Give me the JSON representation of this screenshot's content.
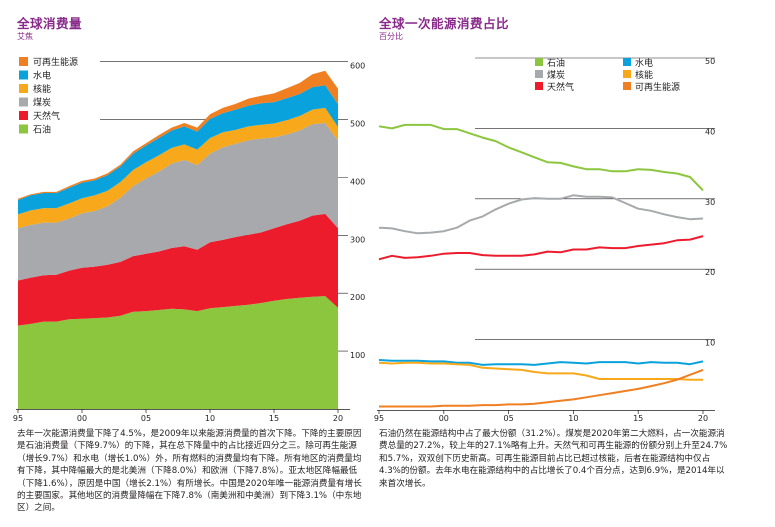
{
  "left_panel": {
    "title": "全球消费量",
    "unit": "艾焦",
    "caption": "去年一次能源消费量下降了4.5%，是2009年以来能源消费量的首次下降。下降的主要原因是石油消费量（下降9.7%）的下降，其在总下降量中的占比接近四分之三。除可再生能源（增长9.7%）和水电（增长1.0%）外，所有燃料的消费量均有下降。所有地区的消费量均有下降，其中降幅最大的是北美洲（下降8.0%）和欧洲（下降7.8%）。亚太地区降幅最低（下降1.6%），原因是中国（增长2.1%）有所增长。中国是2020年唯一能源消费量有增长的主要国家。其他地区的消费量降幅在下降7.8%（南美洲和中美洲）到下降3.1%（中东地区）之间。"
  },
  "right_panel": {
    "title": "全球一次能源消费占比",
    "unit": "百分比",
    "caption": "石油仍然在能源结构中占了最大份额（31.2%）。煤炭是2020年第二大燃料，占一次能源消费总量的27.2%，较上年的27.1%略有上升。天然气和可再生能源的份额分别上升至24.7%和5.7%，双双创下历史新高。可再生能源目前占比已超过核能，后者在能源结构中仅占4.3%的份额。去年水电在能源结构中的占比增长了0.4个百分点，达到6.9%，是2014年以来首次增长。"
  },
  "colors": {
    "oil": "#8cc63f",
    "gas": "#ec1c2d",
    "coal": "#a7a9ac",
    "nuclear": "#f7a81b",
    "hydro": "#0aa2dc",
    "renewables": "#f07f22"
  },
  "chart_data": [
    {
      "type": "area",
      "stacked": true,
      "x": [
        1995,
        1996,
        1997,
        1998,
        1999,
        2000,
        2001,
        2002,
        2003,
        2004,
        2005,
        2006,
        2007,
        2008,
        2009,
        2010,
        2011,
        2012,
        2013,
        2014,
        2015,
        2016,
        2017,
        2018,
        2019,
        2020
      ],
      "x_tick_labels": [
        "95",
        "00",
        "05",
        "10",
        "15",
        "20"
      ],
      "x_ticks": [
        1995,
        2000,
        2005,
        2010,
        2015,
        2020
      ],
      "y_ticks": [
        100,
        200,
        300,
        400,
        500,
        600
      ],
      "ylim": [
        0,
        620
      ],
      "y_axis_side": "right",
      "legend_position": "top-left",
      "legend_order": [
        "renewables",
        "hydro",
        "nuclear",
        "coal",
        "gas",
        "oil"
      ],
      "series": [
        {
          "key": "oil",
          "name": "石油",
          "values": [
            144,
            147,
            151,
            151,
            155,
            156,
            157,
            158,
            161,
            168,
            169,
            171,
            173,
            172,
            169,
            174,
            176,
            178,
            180,
            183,
            187,
            190,
            192,
            194,
            195,
            175
          ]
        },
        {
          "key": "gas",
          "name": "天然气",
          "values": [
            78,
            80,
            80,
            81,
            84,
            88,
            89,
            91,
            93,
            96,
            99,
            101,
            105,
            109,
            106,
            114,
            116,
            119,
            121,
            122,
            125,
            129,
            133,
            140,
            142,
            137
          ]
        },
        {
          "key": "coal",
          "name": "煤炭",
          "values": [
            90,
            91,
            91,
            90,
            90,
            94,
            96,
            101,
            111,
            121,
            130,
            138,
            146,
            149,
            146,
            153,
            160,
            161,
            163,
            162,
            157,
            155,
            156,
            158,
            157,
            151
          ]
        },
        {
          "key": "nuclear",
          "name": "核能",
          "values": [
            24,
            25,
            25,
            25,
            26,
            26,
            27,
            27,
            27,
            28,
            28,
            28,
            27,
            27,
            27,
            27,
            26,
            24,
            24,
            24,
            24,
            25,
            25,
            25,
            26,
            24
          ]
        },
        {
          "key": "hydro",
          "name": "水电",
          "values": [
            25,
            26,
            26,
            26,
            27,
            27,
            26,
            27,
            27,
            28,
            29,
            30,
            30,
            31,
            31,
            33,
            33,
            35,
            36,
            37,
            37,
            38,
            38,
            39,
            39,
            39
          ]
        },
        {
          "key": "renewables",
          "name": "可再生能源",
          "values": [
            2,
            2,
            2,
            2,
            3,
            3,
            3,
            3,
            3,
            4,
            4,
            5,
            5,
            6,
            7,
            8,
            9,
            10,
            12,
            13,
            15,
            17,
            19,
            22,
            25,
            27
          ]
        }
      ]
    },
    {
      "type": "line",
      "x": [
        1995,
        1996,
        1997,
        1998,
        1999,
        2000,
        2001,
        2002,
        2003,
        2004,
        2005,
        2006,
        2007,
        2008,
        2009,
        2010,
        2011,
        2012,
        2013,
        2014,
        2015,
        2016,
        2017,
        2018,
        2019,
        2020
      ],
      "x_tick_labels": [
        "95",
        "00",
        "05",
        "10",
        "15",
        "20"
      ],
      "x_ticks": [
        1995,
        2000,
        2005,
        2010,
        2015,
        2020
      ],
      "y_ticks": [
        10,
        20,
        30,
        40,
        50
      ],
      "ylim": [
        0,
        50
      ],
      "y_axis_side": "right",
      "legend_position": "top",
      "legend_layout": [
        [
          "oil",
          "hydro"
        ],
        [
          "coal",
          "nuclear"
        ],
        [
          "gas",
          "renewables"
        ]
      ],
      "series": [
        {
          "key": "oil",
          "name": "石油",
          "values": [
            40.3,
            40.0,
            40.5,
            40.5,
            40.5,
            39.9,
            39.9,
            39.3,
            38.7,
            38.2,
            37.3,
            36.6,
            35.9,
            35.2,
            35.1,
            34.6,
            34.2,
            34.2,
            33.9,
            33.9,
            34.2,
            34.1,
            33.8,
            33.6,
            33.1,
            31.2
          ]
        },
        {
          "key": "coal",
          "name": "煤炭",
          "values": [
            25.9,
            25.8,
            25.4,
            25.1,
            25.2,
            25.4,
            25.9,
            26.9,
            27.5,
            28.5,
            29.3,
            29.9,
            30.1,
            30.0,
            30.0,
            30.5,
            30.3,
            30.3,
            30.2,
            29.4,
            28.6,
            28.3,
            27.8,
            27.4,
            27.1,
            27.2
          ]
        },
        {
          "key": "gas",
          "name": "天然气",
          "values": [
            21.4,
            21.9,
            21.6,
            21.7,
            21.9,
            22.2,
            22.3,
            22.3,
            22.0,
            21.9,
            21.9,
            21.9,
            22.1,
            22.5,
            22.4,
            22.8,
            22.8,
            23.1,
            23.0,
            23.0,
            23.3,
            23.5,
            23.7,
            24.1,
            24.2,
            24.7
          ]
        },
        {
          "key": "hydro",
          "name": "水电",
          "values": [
            7.1,
            7.0,
            7.0,
            7.0,
            6.9,
            6.9,
            6.7,
            6.7,
            6.4,
            6.5,
            6.5,
            6.5,
            6.4,
            6.6,
            6.8,
            6.7,
            6.6,
            6.8,
            6.8,
            6.8,
            6.6,
            6.8,
            6.7,
            6.7,
            6.5,
            6.9
          ]
        },
        {
          "key": "nuclear",
          "name": "核能",
          "values": [
            6.7,
            6.6,
            6.7,
            6.7,
            6.6,
            6.6,
            6.5,
            6.4,
            6.0,
            5.9,
            5.8,
            5.7,
            5.4,
            5.2,
            5.2,
            5.2,
            4.9,
            4.4,
            4.4,
            4.4,
            4.4,
            4.4,
            4.4,
            4.4,
            4.3,
            4.3
          ]
        },
        {
          "key": "renewables",
          "name": "可再生能源",
          "values": [
            0.5,
            0.5,
            0.5,
            0.5,
            0.5,
            0.6,
            0.6,
            0.6,
            0.7,
            0.7,
            0.8,
            0.8,
            0.9,
            1.1,
            1.3,
            1.5,
            1.8,
            2.1,
            2.4,
            2.7,
            3.0,
            3.4,
            3.8,
            4.3,
            5.0,
            5.7
          ]
        }
      ]
    }
  ]
}
